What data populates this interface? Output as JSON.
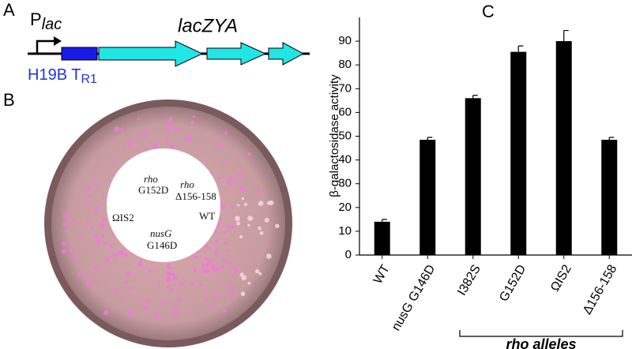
{
  "panel_a": {
    "label": "A",
    "promoter": "P",
    "promoter_sub": "lac",
    "gene": "lacZYA",
    "terminator": "H19B T",
    "terminator_sub": "R1"
  },
  "panel_b": {
    "label": "B",
    "plate_labels": [
      "rho",
      "G152D",
      "rho",
      "Δ156-158",
      "ΩIS2",
      "nusG",
      "G146D",
      "WT"
    ]
  },
  "chart_data": {
    "type": "bar",
    "label": "C",
    "y_label": "β-galactosidase activity",
    "categories": [
      "WT",
      "nusG G146D",
      "I382S",
      "G152D",
      "ΩIS2",
      "Δ156-158"
    ],
    "values": [
      14,
      48.5,
      66,
      85.5,
      90,
      48.5
    ],
    "errors": [
      1,
      1,
      1.2,
      2.5,
      4.5,
      1
    ],
    "color": "#000000",
    "ylim": [
      0,
      100
    ],
    "yticks": [
      0,
      10,
      20,
      30,
      40,
      50,
      60,
      70,
      80,
      90
    ],
    "group_label": "rho alleles"
  }
}
